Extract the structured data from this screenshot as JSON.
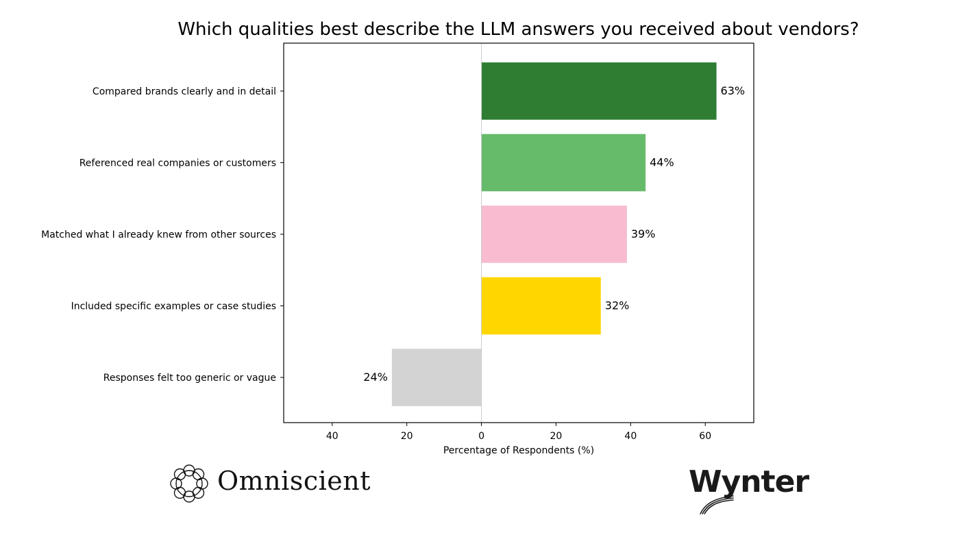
{
  "chart_data": {
    "type": "bar",
    "orientation": "horizontal",
    "title": "Which qualities best describe the LLM answers you received about vendors?",
    "xlabel": "Percentage of Respondents (%)",
    "ylabel": "",
    "xlim": [
      -53,
      73
    ],
    "grid": false,
    "categories": [
      "Compared brands clearly and in detail",
      "Referenced real companies or customers",
      "Matched what I already knew from other sources",
      "Included specific examples or case studies",
      "Responses felt too generic or vague"
    ],
    "values": [
      63,
      44,
      39,
      32,
      -24
    ],
    "data_labels": [
      "63%",
      "44%",
      "39%",
      "32%",
      "24%"
    ],
    "colors": [
      "#2e7d32",
      "#66bb6a",
      "#f8bbd0",
      "#ffd600",
      "#d3d3d3"
    ],
    "x_ticks": [
      {
        "value": -40,
        "label": "40"
      },
      {
        "value": -20,
        "label": "20"
      },
      {
        "value": 0,
        "label": "0"
      },
      {
        "value": 20,
        "label": "20"
      },
      {
        "value": 40,
        "label": "40"
      },
      {
        "value": 60,
        "label": "60"
      }
    ]
  },
  "footer": {
    "left_logo_text": "Omniscient",
    "right_logo_text": "Wynter",
    "left_logo_icon": "omniscient-knot-icon"
  }
}
